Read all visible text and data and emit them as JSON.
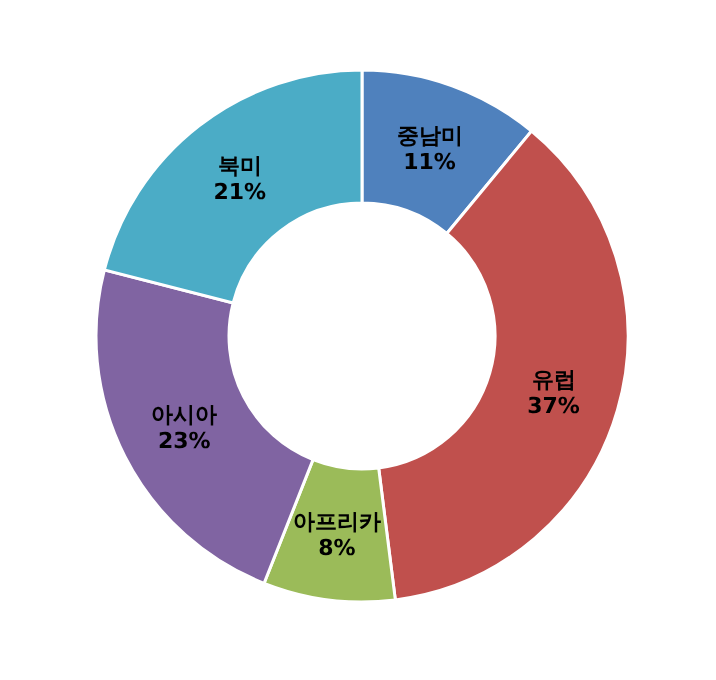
{
  "chart_data": {
    "type": "donut",
    "categories": [
      "중남미",
      "유럽",
      "아프리카",
      "아시아",
      "북미"
    ],
    "values": [
      11,
      37,
      8,
      23,
      21
    ],
    "colors": [
      "#4f81bd",
      "#c0504d",
      "#9bbb59",
      "#8064a2",
      "#4bacc6"
    ],
    "value_labels": [
      "11%",
      "37%",
      "8%",
      "23%",
      "21%"
    ]
  }
}
